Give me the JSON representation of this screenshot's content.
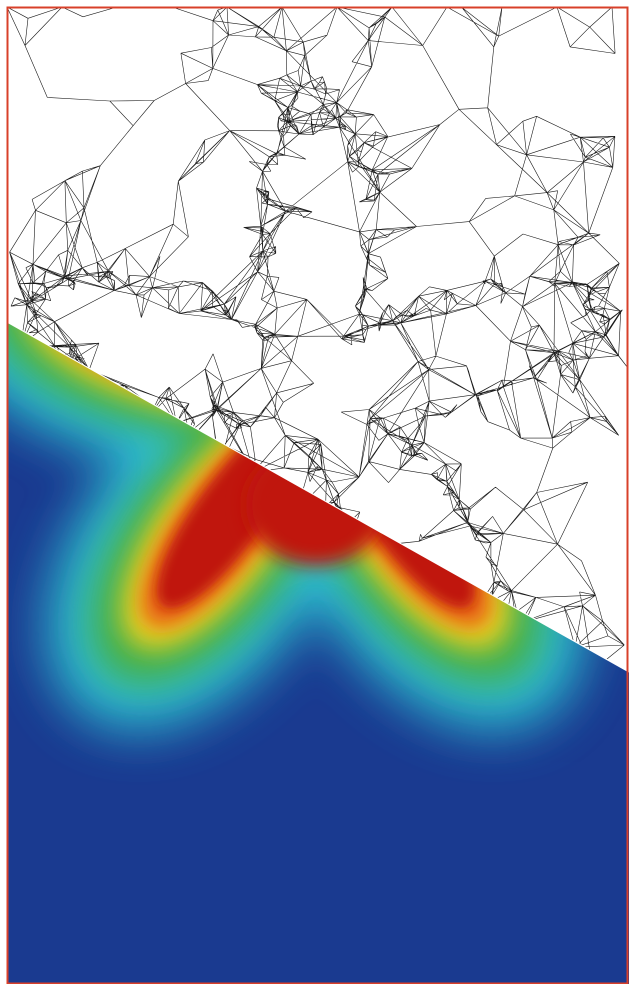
{
  "figure": {
    "description_visible_text": "",
    "frame_color": "#d8402a",
    "background_color": "#ffffff",
    "mesh_stroke_color": "#1a1a1a",
    "colormap": {
      "low": "#1a3a90",
      "mid_low": "#2ec6d6",
      "mid": "#45b04a",
      "mid_high": "#e8d020",
      "high": "#c0130e"
    },
    "lobes": 5
  }
}
